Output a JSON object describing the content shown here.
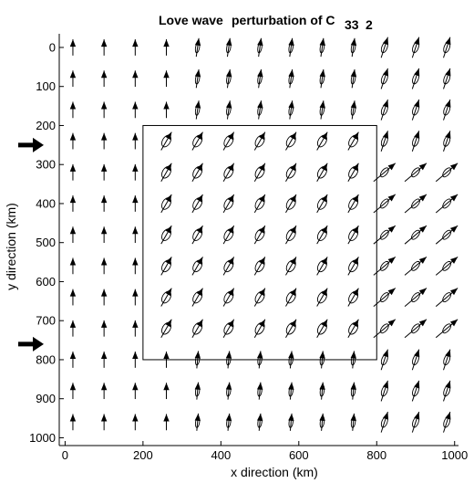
{
  "chart_data": {
    "type": "vector-field",
    "title": {
      "part1": "Love wave",
      "part2": "perturbation of C",
      "sub1": "33",
      "sub2": "2"
    },
    "xlabel": "x  direction (km)",
    "ylabel": "y  direction (km)",
    "xlim": [
      -15,
      1010
    ],
    "ylim": [
      1020,
      -35
    ],
    "y_inverted": true,
    "x_ticks": [
      0,
      200,
      400,
      600,
      800,
      1000
    ],
    "y_ticks": [
      0,
      100,
      200,
      300,
      400,
      500,
      600,
      700,
      800,
      900,
      1000
    ],
    "grid": false,
    "grid_x": [
      20,
      100,
      180,
      260,
      340,
      420,
      500,
      580,
      660,
      740,
      820,
      900,
      980
    ],
    "grid_y": [
      0,
      80,
      160,
      240,
      320,
      400,
      480,
      560,
      640,
      720,
      800,
      880,
      960
    ],
    "box": {
      "x0": 200,
      "x1": 800,
      "y0": 200,
      "y1": 800
    },
    "incident_arrows_y": [
      250,
      760
    ],
    "colors": {
      "line": "#000000",
      "background": "#ffffff"
    }
  }
}
